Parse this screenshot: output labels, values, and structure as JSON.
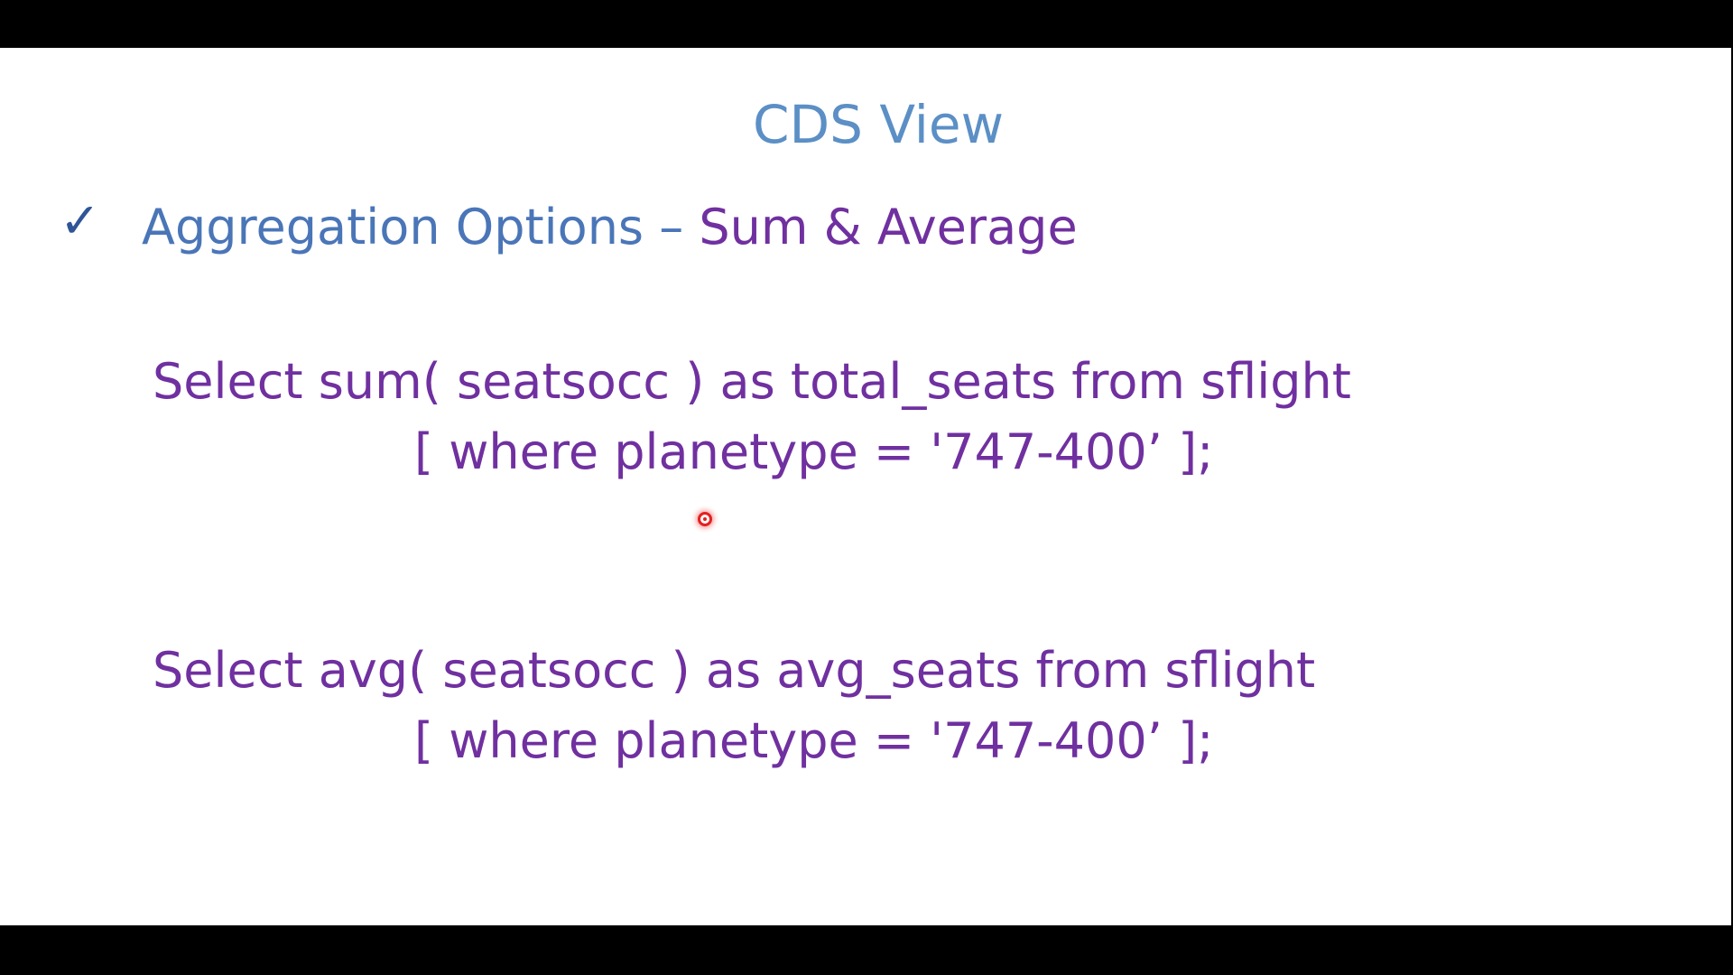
{
  "slide": {
    "title": "CDS View",
    "check_glyph": "✓",
    "heading_part1": "Aggregation Options – ",
    "heading_part2": "Sum & Average",
    "code": [
      "Select sum( seatsocc ) as total_seats from sflight",
      "[ where planetype = '747-400’ ];",
      "Select avg( seatsocc ) as avg_seats from sflight",
      "[ where planetype = '747-400’ ];"
    ]
  },
  "colors": {
    "title": "#5b8fc6",
    "heading_blue": "#4a76b8",
    "heading_purple": "#7030a0",
    "code": "#7030a0",
    "pointer": "#e52020"
  },
  "icons": {
    "check": "checkmark-icon",
    "pointer": "laser-pointer-icon"
  }
}
